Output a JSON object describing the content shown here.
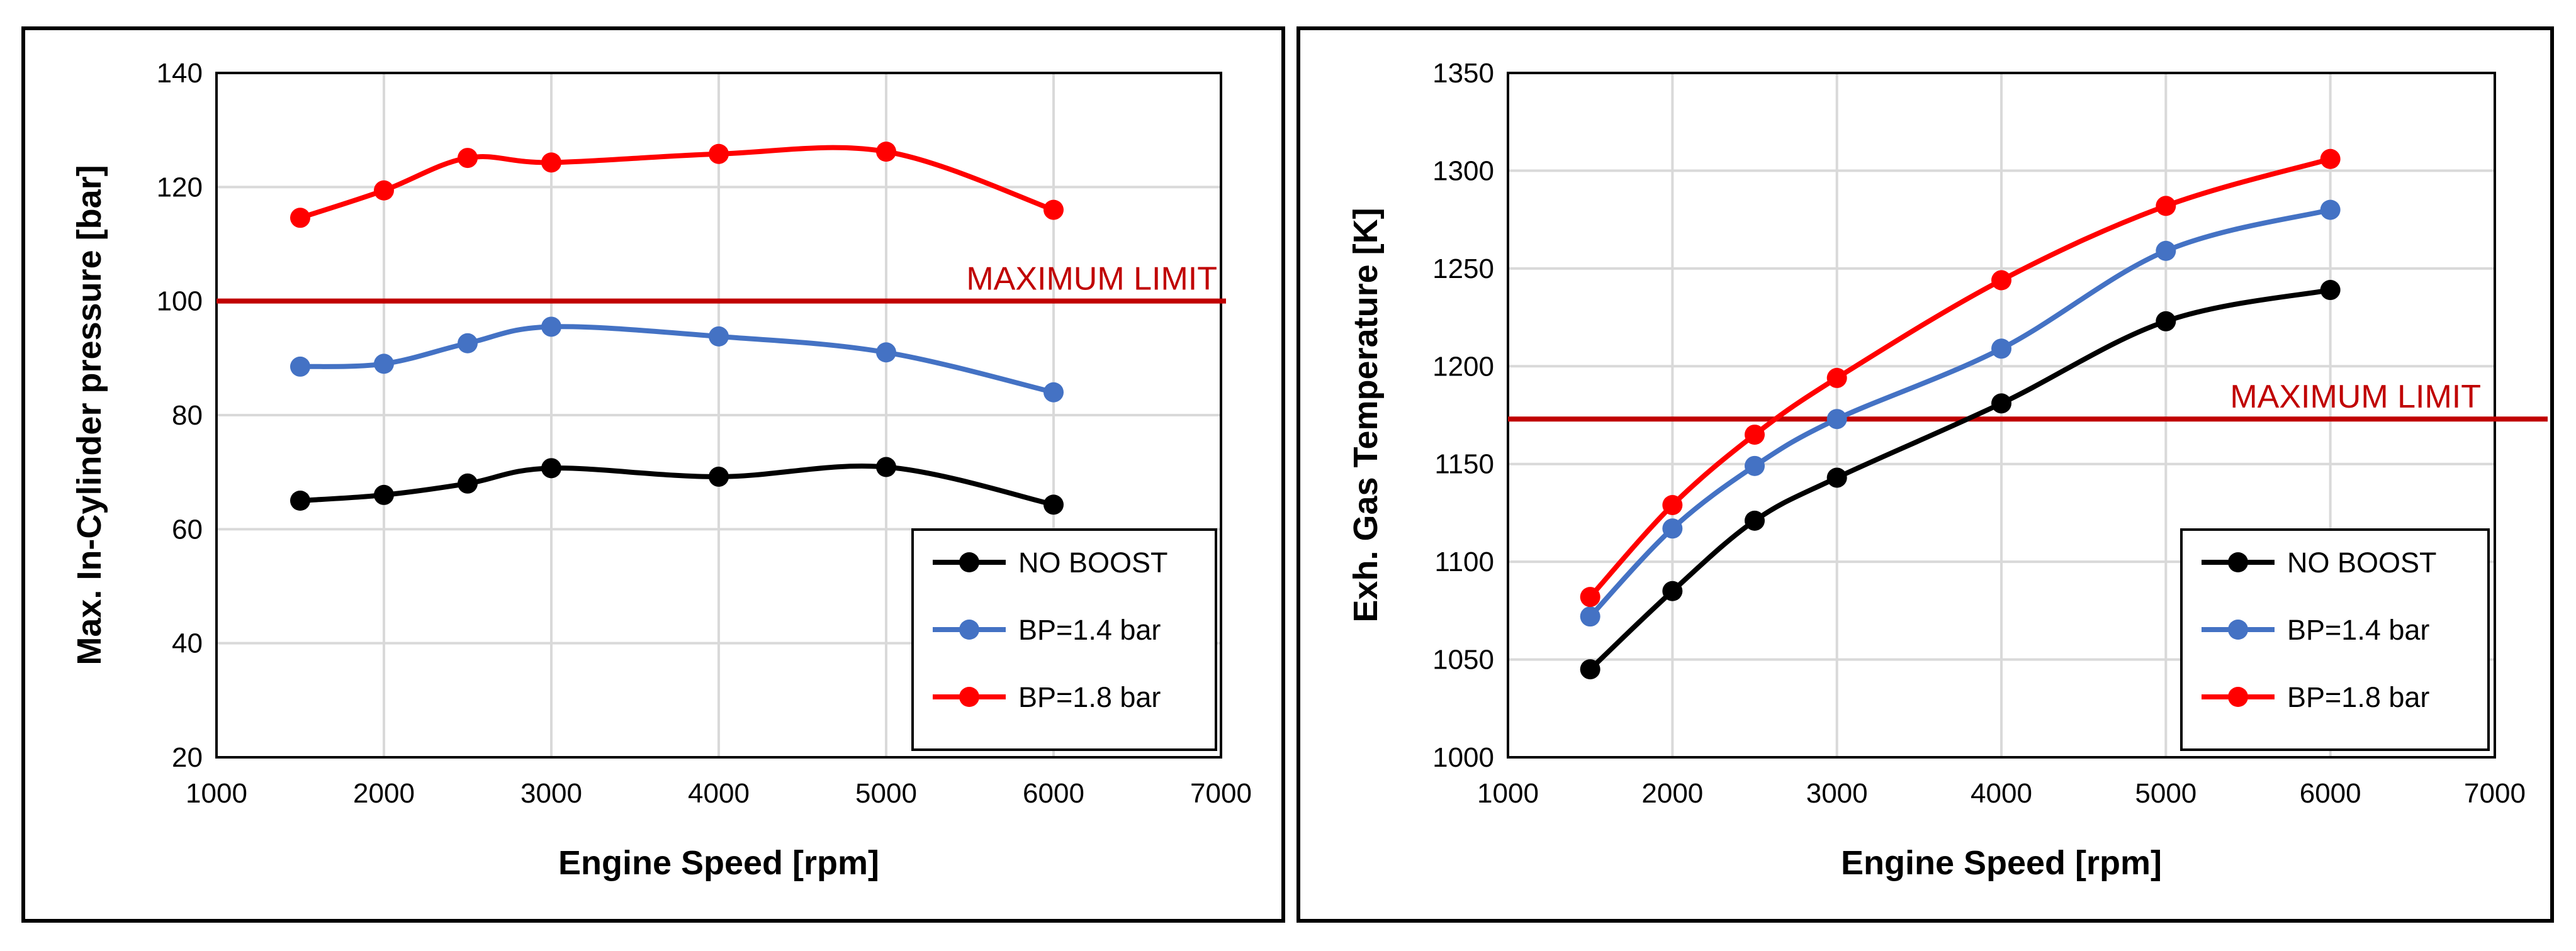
{
  "colors": {
    "no_boost": "#000000",
    "bp14": "#4472C4",
    "bp18": "#FF0000",
    "limit": "#C00000",
    "grid": "#D9D9D9"
  },
  "chart_data": [
    {
      "type": "line",
      "xlabel": "Engine Speed [rpm]",
      "ylabel": "Max. In-Cylinder pressure [bar]",
      "xlim": [
        1000,
        7000
      ],
      "ylim": [
        20,
        140
      ],
      "xticks": [
        1000,
        2000,
        3000,
        4000,
        5000,
        6000,
        7000
      ],
      "yticks": [
        20,
        40,
        60,
        80,
        100,
        120,
        140
      ],
      "grid": true,
      "legend_position": "bottom-right",
      "x": [
        1500,
        2000,
        2500,
        3000,
        4000,
        5000,
        6000
      ],
      "series": [
        {
          "name": "NO BOOST",
          "values": [
            65,
            66,
            68,
            70.7,
            69.2,
            70.9,
            64.3
          ]
        },
        {
          "name": "BP=1.4 bar",
          "values": [
            88.5,
            89,
            92.6,
            95.5,
            93.8,
            91,
            84
          ]
        },
        {
          "name": "BP=1.8 bar",
          "values": [
            114.6,
            119.4,
            125.1,
            124.3,
            125.8,
            126.2,
            116
          ]
        }
      ],
      "limit": {
        "value": 100,
        "label": "MAXIMUM LIMIT"
      }
    },
    {
      "type": "line",
      "xlabel": "Engine Speed [rpm]",
      "ylabel": "Exh. Gas Temperature [K]",
      "xlim": [
        1000,
        7000
      ],
      "ylim": [
        1000,
        1350
      ],
      "xticks": [
        1000,
        2000,
        3000,
        4000,
        5000,
        6000,
        7000
      ],
      "yticks": [
        1000,
        1050,
        1100,
        1150,
        1200,
        1250,
        1300,
        1350
      ],
      "grid": true,
      "legend_position": "bottom-right",
      "x": [
        1500,
        2000,
        2500,
        3000,
        4000,
        5000,
        6000
      ],
      "series": [
        {
          "name": "NO BOOST",
          "values": [
            1045,
            1085,
            1121,
            1143,
            1181,
            1223,
            1239
          ]
        },
        {
          "name": "BP=1.4 bar",
          "values": [
            1072,
            1117,
            1149,
            1173,
            1209,
            1259,
            1280
          ]
        },
        {
          "name": "BP=1.8 bar",
          "values": [
            1082,
            1129,
            1165,
            1194,
            1244,
            1282,
            1306
          ]
        }
      ],
      "limit": {
        "value": 1173,
        "label": "MAXIMUM LIMIT"
      }
    }
  ]
}
